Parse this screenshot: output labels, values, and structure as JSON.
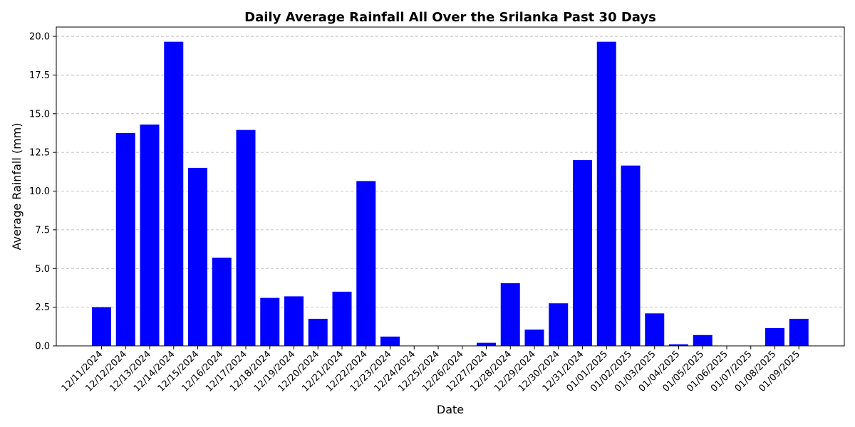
{
  "chart_data": {
    "type": "bar",
    "title": "Daily Average Rainfall All Over the Srilanka Past 30 Days",
    "xlabel": "Date",
    "ylabel": "Average Rainfall (mm)",
    "categories": [
      "12/11/2024",
      "12/12/2024",
      "12/13/2024",
      "12/14/2024",
      "12/15/2024",
      "12/16/2024",
      "12/17/2024",
      "12/18/2024",
      "12/19/2024",
      "12/20/2024",
      "12/21/2024",
      "12/22/2024",
      "12/23/2024",
      "12/24/2024",
      "12/25/2024",
      "12/26/2024",
      "12/27/2024",
      "12/28/2024",
      "12/29/2024",
      "12/30/2024",
      "12/31/2024",
      "01/01/2025",
      "01/02/2025",
      "01/03/2025",
      "01/04/2025",
      "01/05/2025",
      "01/06/2025",
      "01/07/2025",
      "01/08/2025",
      "01/09/2025"
    ],
    "values": [
      2.5,
      13.75,
      14.3,
      19.65,
      11.5,
      5.7,
      13.95,
      3.1,
      3.2,
      1.75,
      3.5,
      10.65,
      0.6,
      0.0,
      0.0,
      0.0,
      0.2,
      4.05,
      1.05,
      2.75,
      12.0,
      19.65,
      11.65,
      2.1,
      0.1,
      0.7,
      0.0,
      0.0,
      1.15,
      1.75
    ],
    "ylim": [
      0,
      20.6
    ],
    "yticks": [
      0.0,
      2.5,
      5.0,
      7.5,
      10.0,
      12.5,
      15.0,
      17.5,
      20.0
    ],
    "ytick_labels": [
      "0.0",
      "2.5",
      "5.0",
      "7.5",
      "10.0",
      "12.5",
      "15.0",
      "17.5",
      "20.0"
    ],
    "bar_color": "#0000ff",
    "grid": "y-axis dashed",
    "legend": "none"
  }
}
